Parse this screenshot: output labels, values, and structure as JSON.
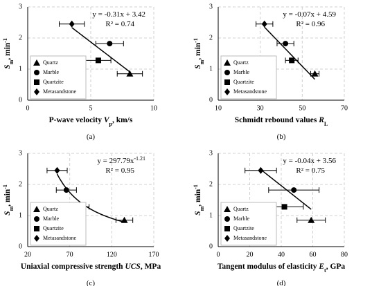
{
  "chart_data": [
    {
      "type": "scatter",
      "panel_label": "(a)",
      "xlabel": [
        {
          "text": "P-wave velocity "
        },
        {
          "text": "V",
          "style": "italic"
        },
        {
          "text": "p",
          "style": "sub"
        },
        {
          "text": ", km/s"
        }
      ],
      "ylabel": [
        {
          "text": "S",
          "style": "italic"
        },
        {
          "text": "m",
          "style": "sub"
        },
        {
          "text": ", min"
        },
        {
          "text": "-1",
          "style": "sup"
        }
      ],
      "equation": [
        {
          "text": "y = -0.31x + 3.42"
        }
      ],
      "r2": "R² = 0.74",
      "xlim": [
        0,
        10
      ],
      "xticks": [
        0,
        5,
        10
      ],
      "ylim": [
        0,
        3
      ],
      "yticks": [
        0,
        1,
        2,
        3
      ],
      "grid": true,
      "legend": "lower left",
      "trend": {
        "kind": "linear",
        "slope": -0.31,
        "intercept": 3.42,
        "x_range": [
          3.5,
          8.1
        ]
      },
      "series": [
        {
          "name": "Quartz",
          "marker": "triangle",
          "color": "#000000",
          "x": [
            8.1
          ],
          "values": [
            0.85
          ],
          "xerr": [
            1.0
          ]
        },
        {
          "name": "Marble",
          "marker": "circle",
          "color": "#000000",
          "x": [
            6.5
          ],
          "values": [
            1.82
          ],
          "xerr": [
            1.1
          ]
        },
        {
          "name": "Quartzite",
          "marker": "square",
          "color": "#000000",
          "x": [
            5.6
          ],
          "values": [
            1.28
          ],
          "xerr": [
            1.0
          ]
        },
        {
          "name": "Metasandstone",
          "marker": "diamond",
          "color": "#000000",
          "x": [
            3.5
          ],
          "values": [
            2.45
          ],
          "xerr": [
            1.0
          ]
        }
      ]
    },
    {
      "type": "scatter",
      "panel_label": "(b)",
      "xlabel": [
        {
          "text": "Schmidt rebound values "
        },
        {
          "text": "R",
          "style": "italic"
        },
        {
          "text": "L",
          "style": "sub"
        }
      ],
      "ylabel": [
        {
          "text": "S",
          "style": "italic"
        },
        {
          "text": "m",
          "style": "sub"
        },
        {
          "text": ", min"
        },
        {
          "text": "-1",
          "style": "sup"
        }
      ],
      "equation": [
        {
          "text": "y = -0.07x + 4.59"
        }
      ],
      "r2": "R² = 0.96",
      "xlim": [
        10,
        70
      ],
      "xticks": [
        10,
        30,
        50,
        70
      ],
      "ylim": [
        0,
        3
      ],
      "yticks": [
        0,
        1,
        2,
        3
      ],
      "grid": true,
      "legend": "lower left",
      "trend": {
        "kind": "linear",
        "slope": -0.07,
        "intercept": 4.59,
        "x_range": [
          32,
          56
        ]
      },
      "series": [
        {
          "name": "Quartz",
          "marker": "triangle",
          "color": "#000000",
          "x": [
            56
          ],
          "values": [
            0.85
          ],
          "xerr": [
            2
          ]
        },
        {
          "name": "Marble",
          "marker": "circle",
          "color": "#000000",
          "x": [
            42
          ],
          "values": [
            1.82
          ],
          "xerr": [
            4
          ]
        },
        {
          "name": "Quartzite",
          "marker": "square",
          "color": "#000000",
          "x": [
            45
          ],
          "values": [
            1.28
          ],
          "xerr": [
            3
          ]
        },
        {
          "name": "Metasandstone",
          "marker": "diamond",
          "color": "#000000",
          "x": [
            32
          ],
          "values": [
            2.45
          ],
          "xerr": [
            4
          ]
        }
      ]
    },
    {
      "type": "scatter",
      "panel_label": "(c)",
      "xlabel": [
        {
          "text": "Uniaxial compressive strength "
        },
        {
          "text": "UCS",
          "style": "italic"
        },
        {
          "text": ", MPa"
        }
      ],
      "ylabel": [
        {
          "text": "S",
          "style": "italic"
        },
        {
          "text": "m",
          "style": "sub"
        },
        {
          "text": ", min"
        },
        {
          "text": "-1",
          "style": "sup"
        }
      ],
      "equation": [
        {
          "text": "y = 297.79x"
        },
        {
          "text": "-1.21",
          "style": "sup"
        }
      ],
      "r2": "R² = 0.95",
      "xlim": [
        20,
        170
      ],
      "xticks": [
        20,
        70,
        120,
        170
      ],
      "ylim": [
        0,
        3
      ],
      "yticks": [
        0,
        1,
        2,
        3
      ],
      "grid": true,
      "legend": "lower left",
      "trend": {
        "kind": "power",
        "coefficient": 297.79,
        "exponent": -1.21,
        "x_range": [
          55,
          135
        ]
      },
      "series": [
        {
          "name": "Quartz",
          "marker": "triangle",
          "color": "#000000",
          "x": [
            135
          ],
          "values": [
            0.85
          ],
          "xerr": [
            10
          ]
        },
        {
          "name": "Marble",
          "marker": "circle",
          "color": "#000000",
          "x": [
            66
          ],
          "values": [
            1.82
          ],
          "xerr": [
            12
          ]
        },
        {
          "name": "Quartzite",
          "marker": "square",
          "color": "#000000",
          "x": [
            80
          ],
          "values": [
            1.28
          ],
          "xerr": [
            13
          ]
        },
        {
          "name": "Metasandstone",
          "marker": "diamond",
          "color": "#000000",
          "x": [
            55
          ],
          "values": [
            2.45
          ],
          "xerr": [
            12
          ]
        }
      ]
    },
    {
      "type": "scatter",
      "panel_label": "(d)",
      "xlabel": [
        {
          "text": "Tangent modulus of elasticity "
        },
        {
          "text": "E",
          "style": "italic"
        },
        {
          "text": "t",
          "style": "sub"
        },
        {
          "text": ", GPa"
        }
      ],
      "ylabel": [
        {
          "text": "S",
          "style": "italic"
        },
        {
          "text": "m",
          "style": "sub"
        },
        {
          "text": ", min"
        },
        {
          "text": "-1",
          "style": "sup"
        }
      ],
      "equation": [
        {
          "text": "y = -0.04x + 3.56"
        }
      ],
      "r2": "R² = 0.75",
      "xlim": [
        0,
        80
      ],
      "xticks": [
        0,
        20,
        40,
        60,
        80
      ],
      "ylim": [
        0,
        3
      ],
      "yticks": [
        0,
        1,
        2,
        3
      ],
      "grid": true,
      "legend": "lower left",
      "trend": {
        "kind": "linear",
        "slope": -0.04,
        "intercept": 3.56,
        "x_range": [
          27,
          59
        ]
      },
      "series": [
        {
          "name": "Quartz",
          "marker": "triangle",
          "color": "#000000",
          "x": [
            59
          ],
          "values": [
            0.85
          ],
          "xerr": [
            9
          ]
        },
        {
          "name": "Marble",
          "marker": "circle",
          "color": "#000000",
          "x": [
            48
          ],
          "values": [
            1.82
          ],
          "xerr": [
            16
          ]
        },
        {
          "name": "Quartzite",
          "marker": "square",
          "color": "#000000",
          "x": [
            42
          ],
          "values": [
            1.28
          ],
          "xerr": [
            12
          ]
        },
        {
          "name": "Metasandstone",
          "marker": "diamond",
          "color": "#000000",
          "x": [
            27
          ],
          "values": [
            2.45
          ],
          "xerr": [
            10
          ]
        }
      ]
    }
  ]
}
